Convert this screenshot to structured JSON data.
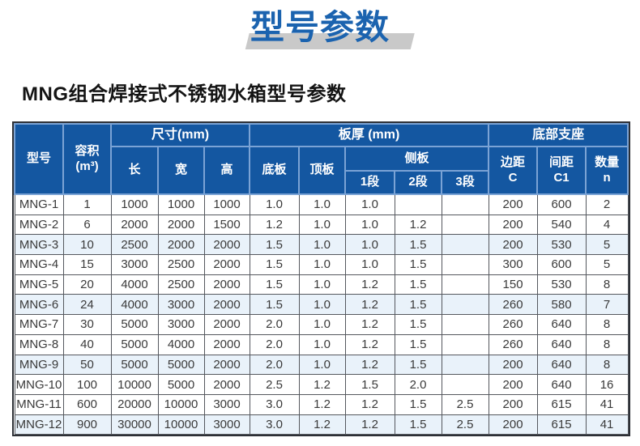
{
  "page_title": "型号参数",
  "section_title": "MNG组合焊接式不锈钢水箱型号参数",
  "colors": {
    "title_blue": "#1b63af",
    "title_shadow": "#c9c9c9",
    "header_bg": "#1457a1",
    "header_line": "#7ba3d5",
    "border_dark": "#2d3036",
    "row_tint": "#e9f2fa"
  },
  "table": {
    "header": {
      "model": "型号",
      "capacity": "容积\n(m³)",
      "dimensions_group": "尺寸(mm)",
      "length": "长",
      "width": "宽",
      "height": "高",
      "thickness_group": "板厚 (mm)",
      "bottom_plate": "底板",
      "top_plate": "顶板",
      "side_plate_group": "侧板",
      "seg1": "1段",
      "seg2": "2段",
      "seg3": "3段",
      "support_group": "底部支座",
      "edge_c": "边距\nC",
      "spacing_c1": "间距\nC1",
      "qty_n": "数量\nn"
    },
    "rows": [
      [
        "MNG-1",
        "1",
        "1000",
        "1000",
        "1000",
        "1.0",
        "1.0",
        "1.0",
        "",
        "",
        "200",
        "600",
        "2"
      ],
      [
        "MNG-2",
        "6",
        "2000",
        "2000",
        "1500",
        "1.2",
        "1.0",
        "1.0",
        "1.2",
        "",
        "200",
        "540",
        "4"
      ],
      [
        "MNG-3",
        "10",
        "2500",
        "2000",
        "2000",
        "1.5",
        "1.0",
        "1.0",
        "1.5",
        "",
        "200",
        "530",
        "5"
      ],
      [
        "MNG-4",
        "15",
        "3000",
        "2500",
        "2000",
        "1.5",
        "1.0",
        "1.0",
        "1.5",
        "",
        "300",
        "600",
        "5"
      ],
      [
        "MNG-5",
        "20",
        "4000",
        "2500",
        "2000",
        "1.5",
        "1.0",
        "1.2",
        "1.5",
        "",
        "150",
        "530",
        "8"
      ],
      [
        "MNG-6",
        "24",
        "4000",
        "3000",
        "2000",
        "1.5",
        "1.0",
        "1.2",
        "1.5",
        "",
        "260",
        "580",
        "7"
      ],
      [
        "MNG-7",
        "30",
        "5000",
        "3000",
        "2000",
        "2.0",
        "1.0",
        "1.2",
        "1.5",
        "",
        "260",
        "640",
        "8"
      ],
      [
        "MNG-8",
        "40",
        "5000",
        "4000",
        "2000",
        "2.0",
        "1.0",
        "1.2",
        "1.5",
        "",
        "260",
        "640",
        "8"
      ],
      [
        "MNG-9",
        "50",
        "5000",
        "5000",
        "2000",
        "2.0",
        "1.0",
        "1.2",
        "1.5",
        "",
        "200",
        "640",
        "8"
      ],
      [
        "MNG-10",
        "100",
        "10000",
        "5000",
        "2000",
        "2.5",
        "1.2",
        "1.5",
        "2.0",
        "",
        "200",
        "640",
        "16"
      ],
      [
        "MNG-11",
        "600",
        "20000",
        "10000",
        "3000",
        "3.0",
        "1.2",
        "1.2",
        "1.5",
        "2.5",
        "200",
        "615",
        "41"
      ],
      [
        "MNG-12",
        "900",
        "30000",
        "10000",
        "3000",
        "3.0",
        "1.2",
        "1.2",
        "1.5",
        "2.5",
        "200",
        "615",
        "41"
      ]
    ]
  }
}
